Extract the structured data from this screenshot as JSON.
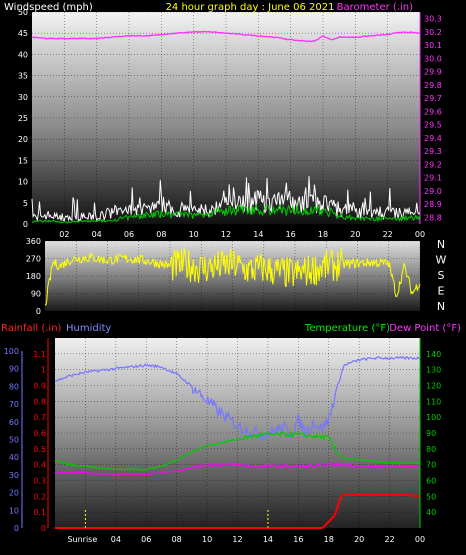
{
  "colors": {
    "wind_gust": "#ffffff",
    "wind_avg": "#00cc00",
    "wind_dark": "#004400",
    "barometer": "#ff33ff",
    "direction": "#ffff00",
    "rainfall": "#ff0000",
    "humidity": "#7777ff",
    "temperature": "#00cc00",
    "dewpoint": "#ff00ff",
    "sunrise": "#ffff00",
    "axis_text": "#ffffff",
    "baro_text": "#ff33ff"
  },
  "chart_data": [
    {
      "type": "line",
      "title": "24 hour graph day : June 06 2021",
      "left_label": "Windspeed (mph)",
      "right_label": "Barometer (.in)",
      "x_ticks": [
        "02",
        "04",
        "06",
        "08",
        "10",
        "12",
        "14",
        "16",
        "18",
        "20",
        "22",
        "00"
      ],
      "ylim_left": [
        0,
        50
      ],
      "y_ticks_left": [
        0,
        5,
        10,
        15,
        20,
        25,
        30,
        35,
        40,
        45,
        50
      ],
      "ylim_right": [
        28.75,
        30.35
      ],
      "y_ticks_right": [
        28.8,
        28.9,
        29.0,
        29.1,
        29.2,
        29.3,
        29.4,
        29.5,
        29.6,
        29.7,
        29.8,
        29.9,
        30.0,
        30.1,
        30.2,
        30.3
      ],
      "series": [
        {
          "name": "Barometer",
          "hours": [
            0,
            1,
            2,
            3,
            4,
            5,
            6,
            7,
            8,
            9,
            10,
            11,
            12,
            13,
            14,
            15,
            16,
            17,
            17.5,
            18,
            18.5,
            19,
            20,
            21,
            22,
            23,
            24
          ],
          "values": [
            30.16,
            30.15,
            30.15,
            30.15,
            30.15,
            30.16,
            30.17,
            30.17,
            30.18,
            30.19,
            30.2,
            30.2,
            30.19,
            30.18,
            30.17,
            30.16,
            30.14,
            30.13,
            30.13,
            30.17,
            30.14,
            30.16,
            30.16,
            30.17,
            30.18,
            30.2,
            30.19
          ]
        },
        {
          "name": "Wind gust",
          "hours": [
            0,
            1,
            2,
            3,
            4,
            5,
            6,
            7,
            8,
            9,
            10,
            11,
            12,
            13,
            14,
            15,
            16,
            17,
            18,
            19,
            20,
            21,
            22,
            23,
            24
          ],
          "values": [
            2,
            2.5,
            1.5,
            2,
            2,
            3,
            3.5,
            4,
            4.5,
            4,
            3.5,
            4,
            5,
            5.5,
            6,
            6,
            5.5,
            7,
            6,
            4,
            3.5,
            3,
            3,
            3,
            3.5
          ]
        },
        {
          "name": "Wind average",
          "hours": [
            0,
            1,
            2,
            3,
            4,
            5,
            6,
            7,
            8,
            9,
            10,
            11,
            12,
            13,
            14,
            15,
            16,
            17,
            18,
            19,
            20,
            21,
            22,
            23,
            24
          ],
          "values": [
            0.5,
            0.8,
            0.4,
            0.6,
            0.7,
            1,
            1.5,
            2,
            2.5,
            2.2,
            2,
            2.4,
            3,
            3.2,
            3.5,
            3.4,
            3.2,
            3.5,
            3.3,
            2,
            1.5,
            1.2,
            1.2,
            1.3,
            1.6
          ]
        }
      ]
    },
    {
      "type": "scatter",
      "ylim": [
        0,
        360
      ],
      "y_ticks": [
        0,
        90,
        180,
        270,
        360
      ],
      "compass": [
        "N",
        "W",
        "S",
        "E",
        "N"
      ],
      "series": [
        {
          "name": "Wind direction",
          "hours": [
            0,
            0.5,
            1,
            1.5,
            2,
            3,
            4,
            5,
            6,
            7,
            8,
            9,
            10,
            11,
            12,
            13,
            14,
            15,
            16,
            17,
            18,
            19,
            20,
            21,
            22,
            22.5,
            23,
            23.5,
            24
          ],
          "values": [
            20,
            250,
            230,
            260,
            270,
            275,
            260,
            270,
            265,
            250,
            230,
            240,
            220,
            230,
            240,
            210,
            220,
            200,
            190,
            210,
            230,
            240,
            245,
            250,
            245,
            80,
            230,
            90,
            150
          ]
        }
      ]
    },
    {
      "type": "line",
      "left_label_rain": "Rainfall (.in)",
      "left_label_humidity": "Humidity",
      "right_label_temp": "Temperature (°F)",
      "right_label_dew": "Dew Point (°F)",
      "x_ticks": [
        "Sunrise",
        "04",
        "06",
        "08",
        "10",
        "12",
        "14",
        "16",
        "18",
        "20",
        "22",
        "00"
      ],
      "sunrise_label": "Sunrise",
      "rain_ylim": [
        0,
        1.2
      ],
      "rain_ticks": [
        0,
        0.1,
        0.2,
        0.3,
        0.4,
        0.5,
        0.6,
        0.7,
        0.8,
        0.9,
        1.0,
        1.1
      ],
      "rain_tick_labels": [
        "0",
        "0.1",
        "0.2",
        "0.3",
        "0.4",
        "0.5",
        "0.6",
        "0.7",
        "0.8",
        "0.9",
        "1",
        "1.1"
      ],
      "hum_ylim": [
        0,
        100
      ],
      "hum_ticks": [
        0,
        10,
        20,
        30,
        40,
        50,
        60,
        70,
        80,
        90,
        100
      ],
      "temp_ylim": [
        30,
        150
      ],
      "temp_ticks": [
        40,
        50,
        60,
        70,
        80,
        90,
        100,
        110,
        120,
        130,
        140
      ],
      "sunrise_hours": [
        2,
        14
      ],
      "series": [
        {
          "name": "Humidity",
          "hours": [
            0,
            1,
            2,
            3,
            4,
            5,
            6,
            7,
            8,
            9,
            10,
            11,
            12,
            13,
            14,
            15,
            15.5,
            16,
            16.5,
            17,
            17.5,
            18,
            18.5,
            19,
            20,
            21,
            22,
            23,
            24
          ],
          "values": [
            83,
            86,
            88,
            89,
            90,
            91,
            92,
            91,
            87,
            80,
            72,
            64,
            58,
            54,
            53,
            57,
            53,
            61,
            54,
            60,
            56,
            61,
            78,
            92,
            95,
            96,
            96,
            96,
            96
          ]
        },
        {
          "name": "Temperature",
          "hours": [
            0,
            1,
            2,
            3,
            4,
            5,
            6,
            7,
            8,
            9,
            10,
            11,
            12,
            13,
            14,
            15,
            16,
            17,
            18,
            18.5,
            19,
            20,
            21,
            22,
            23,
            24
          ],
          "values": [
            73,
            70,
            69,
            68,
            67,
            67,
            67,
            69,
            73,
            78,
            82,
            84,
            86,
            88,
            89,
            89,
            89,
            88,
            87,
            78,
            74,
            73,
            72,
            71,
            71,
            71
          ]
        },
        {
          "name": "Dew point",
          "hours": [
            0,
            1,
            2,
            3,
            4,
            5,
            6,
            7,
            8,
            9,
            10,
            11,
            12,
            13,
            14,
            15,
            16,
            17,
            18,
            19,
            20,
            21,
            22,
            23,
            24
          ],
          "values": [
            65,
            65,
            65,
            64,
            64,
            64,
            64,
            65,
            66,
            68,
            70,
            70,
            70,
            69,
            69,
            69,
            69,
            69,
            70,
            70,
            69,
            69,
            69,
            69,
            69
          ]
        },
        {
          "name": "Rainfall",
          "hours": [
            0,
            17.6,
            18.4,
            18.8,
            19,
            20,
            21,
            22,
            23,
            24
          ],
          "values": [
            0,
            0,
            0.08,
            0.2,
            0.21,
            0.21,
            0.21,
            0.21,
            0.21,
            0.2
          ]
        }
      ]
    }
  ]
}
